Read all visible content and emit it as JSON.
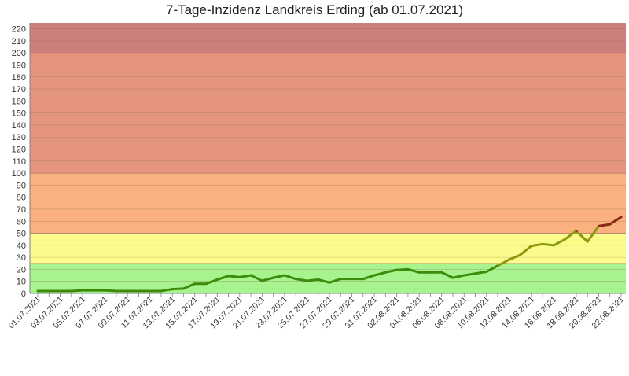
{
  "chart_data": {
    "type": "line",
    "title": "7-Tage-Inzidenz Landkreis Erding (ab 01.07.2021)",
    "xlabel": "",
    "ylabel": "",
    "ylim": [
      0,
      225
    ],
    "yticks": [
      0,
      10,
      20,
      30,
      40,
      50,
      60,
      70,
      80,
      90,
      100,
      110,
      120,
      130,
      140,
      150,
      160,
      170,
      180,
      190,
      200,
      210,
      220
    ],
    "grid": true,
    "legend": "none",
    "x": [
      "01.07.2021",
      "02.07.2021",
      "03.07.2021",
      "04.07.2021",
      "05.07.2021",
      "06.07.2021",
      "07.07.2021",
      "08.07.2021",
      "09.07.2021",
      "10.07.2021",
      "11.07.2021",
      "12.07.2021",
      "13.07.2021",
      "14.07.2021",
      "15.07.2021",
      "16.07.2021",
      "17.07.2021",
      "18.07.2021",
      "19.07.2021",
      "20.07.2021",
      "21.07.2021",
      "22.07.2021",
      "23.07.2021",
      "24.07.2021",
      "25.07.2021",
      "26.07.2021",
      "27.07.2021",
      "28.07.2021",
      "29.07.2021",
      "30.07.2021",
      "31.07.2021",
      "01.08.2021",
      "02.08.2021",
      "03.08.2021",
      "04.08.2021",
      "05.08.2021",
      "06.08.2021",
      "07.08.2021",
      "08.08.2021",
      "09.08.2021",
      "10.08.2021",
      "11.08.2021",
      "12.08.2021",
      "13.08.2021",
      "14.08.2021",
      "15.08.2021",
      "16.08.2021",
      "17.08.2021",
      "18.08.2021",
      "19.08.2021",
      "20.08.2021",
      "21.08.2021",
      "22.08.2021"
    ],
    "xtick_labels": [
      "01.07.2021",
      "03.07.2021",
      "05.07.2021",
      "07.07.2021",
      "09.07.2021",
      "11.07.2021",
      "13.07.2021",
      "15.07.2021",
      "17.07.2021",
      "19.07.2021",
      "21.07.2021",
      "23.07.2021",
      "25.07.2021",
      "27.07.2021",
      "29.07.2021",
      "31.07.2021",
      "02.08.2021",
      "04.08.2021",
      "06.08.2021",
      "08.08.2021",
      "10.08.2021",
      "12.08.2021",
      "14.08.2021",
      "16.08.2021",
      "18.08.2021",
      "20.08.2021",
      "22.08.2021"
    ],
    "series": [
      {
        "values": [
          2,
          2,
          2,
          2,
          2.5,
          2.5,
          2.5,
          2,
          2,
          2,
          2,
          2,
          3.5,
          4,
          8,
          8,
          11.5,
          14.5,
          13.5,
          15,
          10.5,
          13,
          15,
          12,
          10.5,
          11.5,
          9,
          12,
          12,
          12,
          15,
          17.5,
          19.5,
          20,
          17.5,
          17.5,
          17.5,
          13,
          15,
          16.5,
          18,
          23,
          28,
          32,
          39.5,
          41,
          40,
          45,
          52,
          43,
          56,
          57.5,
          63.5
        ]
      }
    ],
    "bands": [
      {
        "from": 0,
        "to": 25,
        "color": "#a7f48f"
      },
      {
        "from": 25,
        "to": 50,
        "color": "#fbfb8c"
      },
      {
        "from": 50,
        "to": 100,
        "color": "#fbb17f"
      },
      {
        "from": 100,
        "to": 200,
        "color": "#e5957c"
      },
      {
        "from": 200,
        "to": 225,
        "color": "#cd7f7c"
      }
    ],
    "line_colors": {
      "low": "#3d8a0c",
      "mid": "#8a9a10",
      "high": "#8a2a10"
    }
  }
}
